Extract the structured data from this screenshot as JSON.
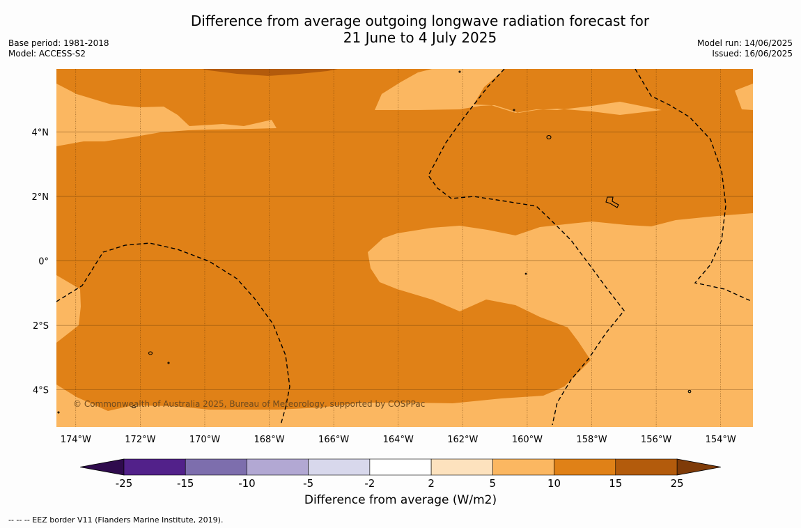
{
  "title_line1": "Difference from average outgoing longwave radiation forecast for",
  "title_line2": "21 June to 4 July 2025",
  "base_period": "Base period: 1981-2018",
  "model": "Model: ACCESS-S2",
  "model_run": "Model run: 14/06/2025",
  "issued": "Issued: 16/06/2025",
  "credit": "© Commonwealth of Australia 2025, Bureau of Meteorology, supported by COSPPac",
  "footer_note": "--  --  -- EEZ border V11 (Flanders Marine Institute, 2019).",
  "map": {
    "lon_range": [
      -174.6,
      -153
    ],
    "lat_range": [
      -5.15,
      5.95
    ],
    "lon_ticks": [
      -174,
      -172,
      -170,
      -168,
      -166,
      -164,
      -162,
      -160,
      -158,
      -156,
      -154
    ],
    "lon_tick_labels": [
      "174°W",
      "172°W",
      "170°W",
      "168°W",
      "166°W",
      "164°W",
      "162°W",
      "160°W",
      "158°W",
      "156°W",
      "154°W"
    ],
    "lat_ticks": [
      4,
      2,
      0,
      -2,
      -4
    ],
    "lat_tick_labels": [
      "4°N",
      "2°N",
      "0°",
      "2°S",
      "4°S"
    ],
    "grid": true
  },
  "colorbar": {
    "label": "Difference from average (W/m2)",
    "ticks": [
      "-25",
      "-15",
      "-10",
      "-5",
      "-2",
      "2",
      "5",
      "10",
      "15",
      "25"
    ],
    "colors": [
      "#52218a",
      "#7d6ead",
      "#b2a8d3",
      "#d8d8ec",
      "#ffffff",
      "#fde2be",
      "#fbb761",
      "#e08117",
      "#b35b0c"
    ],
    "under_color": "#2f0b4d",
    "over_color": "#7f3b08"
  },
  "palette": {
    "band_5_10": "#fbb761",
    "band_10_15": "#e08117",
    "band_15_25": "#b35b0c"
  }
}
